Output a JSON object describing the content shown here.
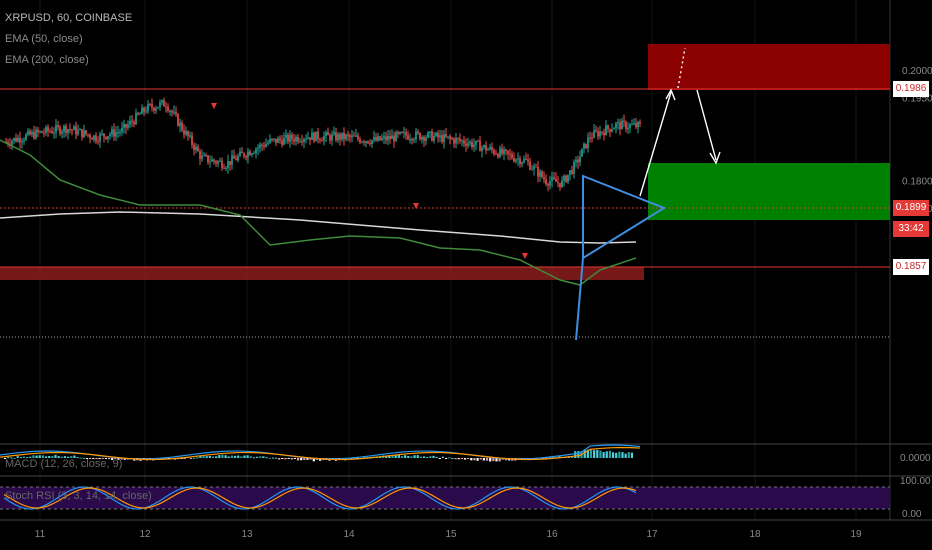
{
  "header": {
    "symbol": "XRPUSD, 60, COINBASE",
    "ema50": "EMA (50, close)",
    "ema200": "EMA (200, close)"
  },
  "indicators": {
    "macd": "MACD (12, 26, close, 9)",
    "stoch": "Stoch RSI (3, 3, 14, 14, close)"
  },
  "price_labels": {
    "resistance": "0.1986",
    "current": "0.1899",
    "countdown": "33:42",
    "support": "0.1857"
  },
  "colors": {
    "bull": "#26a69a",
    "bear": "#ef5350",
    "ema50": "#3f8b3a",
    "ema200": "#d9d9d9",
    "triangle": "#3f8de0",
    "red_zone": "#8b0000",
    "green_zone": "#008000",
    "support_zone": "#8b1c1c",
    "stoch_bg": "#2a0a4a",
    "macd_line": "#2196f3",
    "signal_line": "#ff9800",
    "stoch_k": "#2196f3",
    "stoch_d": "#ff9800"
  },
  "chart_data": {
    "type": "candlestick",
    "symbol": "XRPUSD",
    "interval": "60",
    "exchange": "COINBASE",
    "x_ticks": [
      "11",
      "12",
      "13",
      "14",
      "15",
      "16",
      "17",
      "18",
      "19"
    ],
    "y_ticks": [
      "0.2000",
      "0.1950",
      "0.1800",
      "0.1750"
    ],
    "ylim": [
      0.1722,
      0.2043
    ],
    "levels": {
      "resistance": 0.1986,
      "current": 0.1899,
      "support": 0.1857
    },
    "macd_ticks": [
      "0.0000"
    ],
    "stoch_ticks": [
      "100.00",
      "0.00"
    ]
  }
}
